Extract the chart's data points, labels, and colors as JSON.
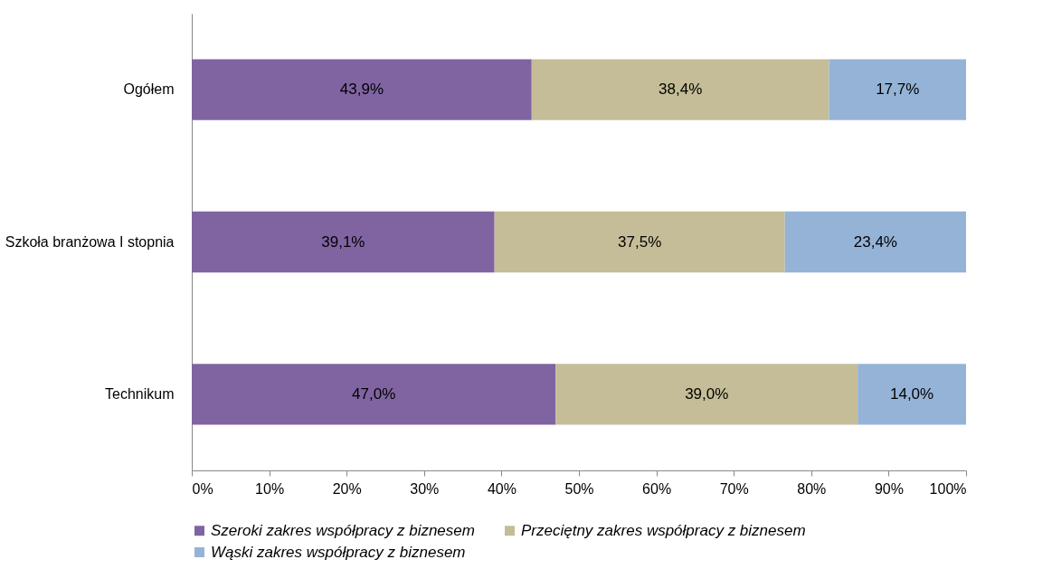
{
  "chart_data": {
    "type": "bar",
    "orientation": "horizontal",
    "stacked": true,
    "categories": [
      "Ogółem",
      "Szkoła branżowa I stopnia",
      "Technikum"
    ],
    "series": [
      {
        "name": "Szeroki zakres współpracy z biznesem",
        "color": "#8064a2",
        "values": [
          43.9,
          39.1,
          47.0
        ],
        "value_labels": [
          "43,9%",
          "39,1%",
          "47,0%"
        ]
      },
      {
        "name": "Przeciętny zakres współpracy z biznesem",
        "color": "#c4bd97",
        "values": [
          38.4,
          37.5,
          39.0
        ],
        "value_labels": [
          "38,4%",
          "37,5%",
          "39,0%"
        ]
      },
      {
        "name": "Wąski zakres współpracy z biznesem",
        "color": "#95b3d7",
        "values": [
          17.7,
          23.4,
          14.0
        ],
        "value_labels": [
          "17,7%",
          "23,4%",
          "14,0%"
        ]
      }
    ],
    "xlim": [
      0,
      100
    ],
    "xticks": [
      {
        "value": 0,
        "label": "0%"
      },
      {
        "value": 10,
        "label": "10%"
      },
      {
        "value": 20,
        "label": "20%"
      },
      {
        "value": 30,
        "label": "30%"
      },
      {
        "value": 40,
        "label": "40%"
      },
      {
        "value": 50,
        "label": "50%"
      },
      {
        "value": 60,
        "label": "60%"
      },
      {
        "value": 70,
        "label": "70%"
      },
      {
        "value": 80,
        "label": "80%"
      },
      {
        "value": 90,
        "label": "90%"
      },
      {
        "value": 100,
        "label": "100%"
      }
    ],
    "grid": false,
    "legend": "bottom"
  }
}
